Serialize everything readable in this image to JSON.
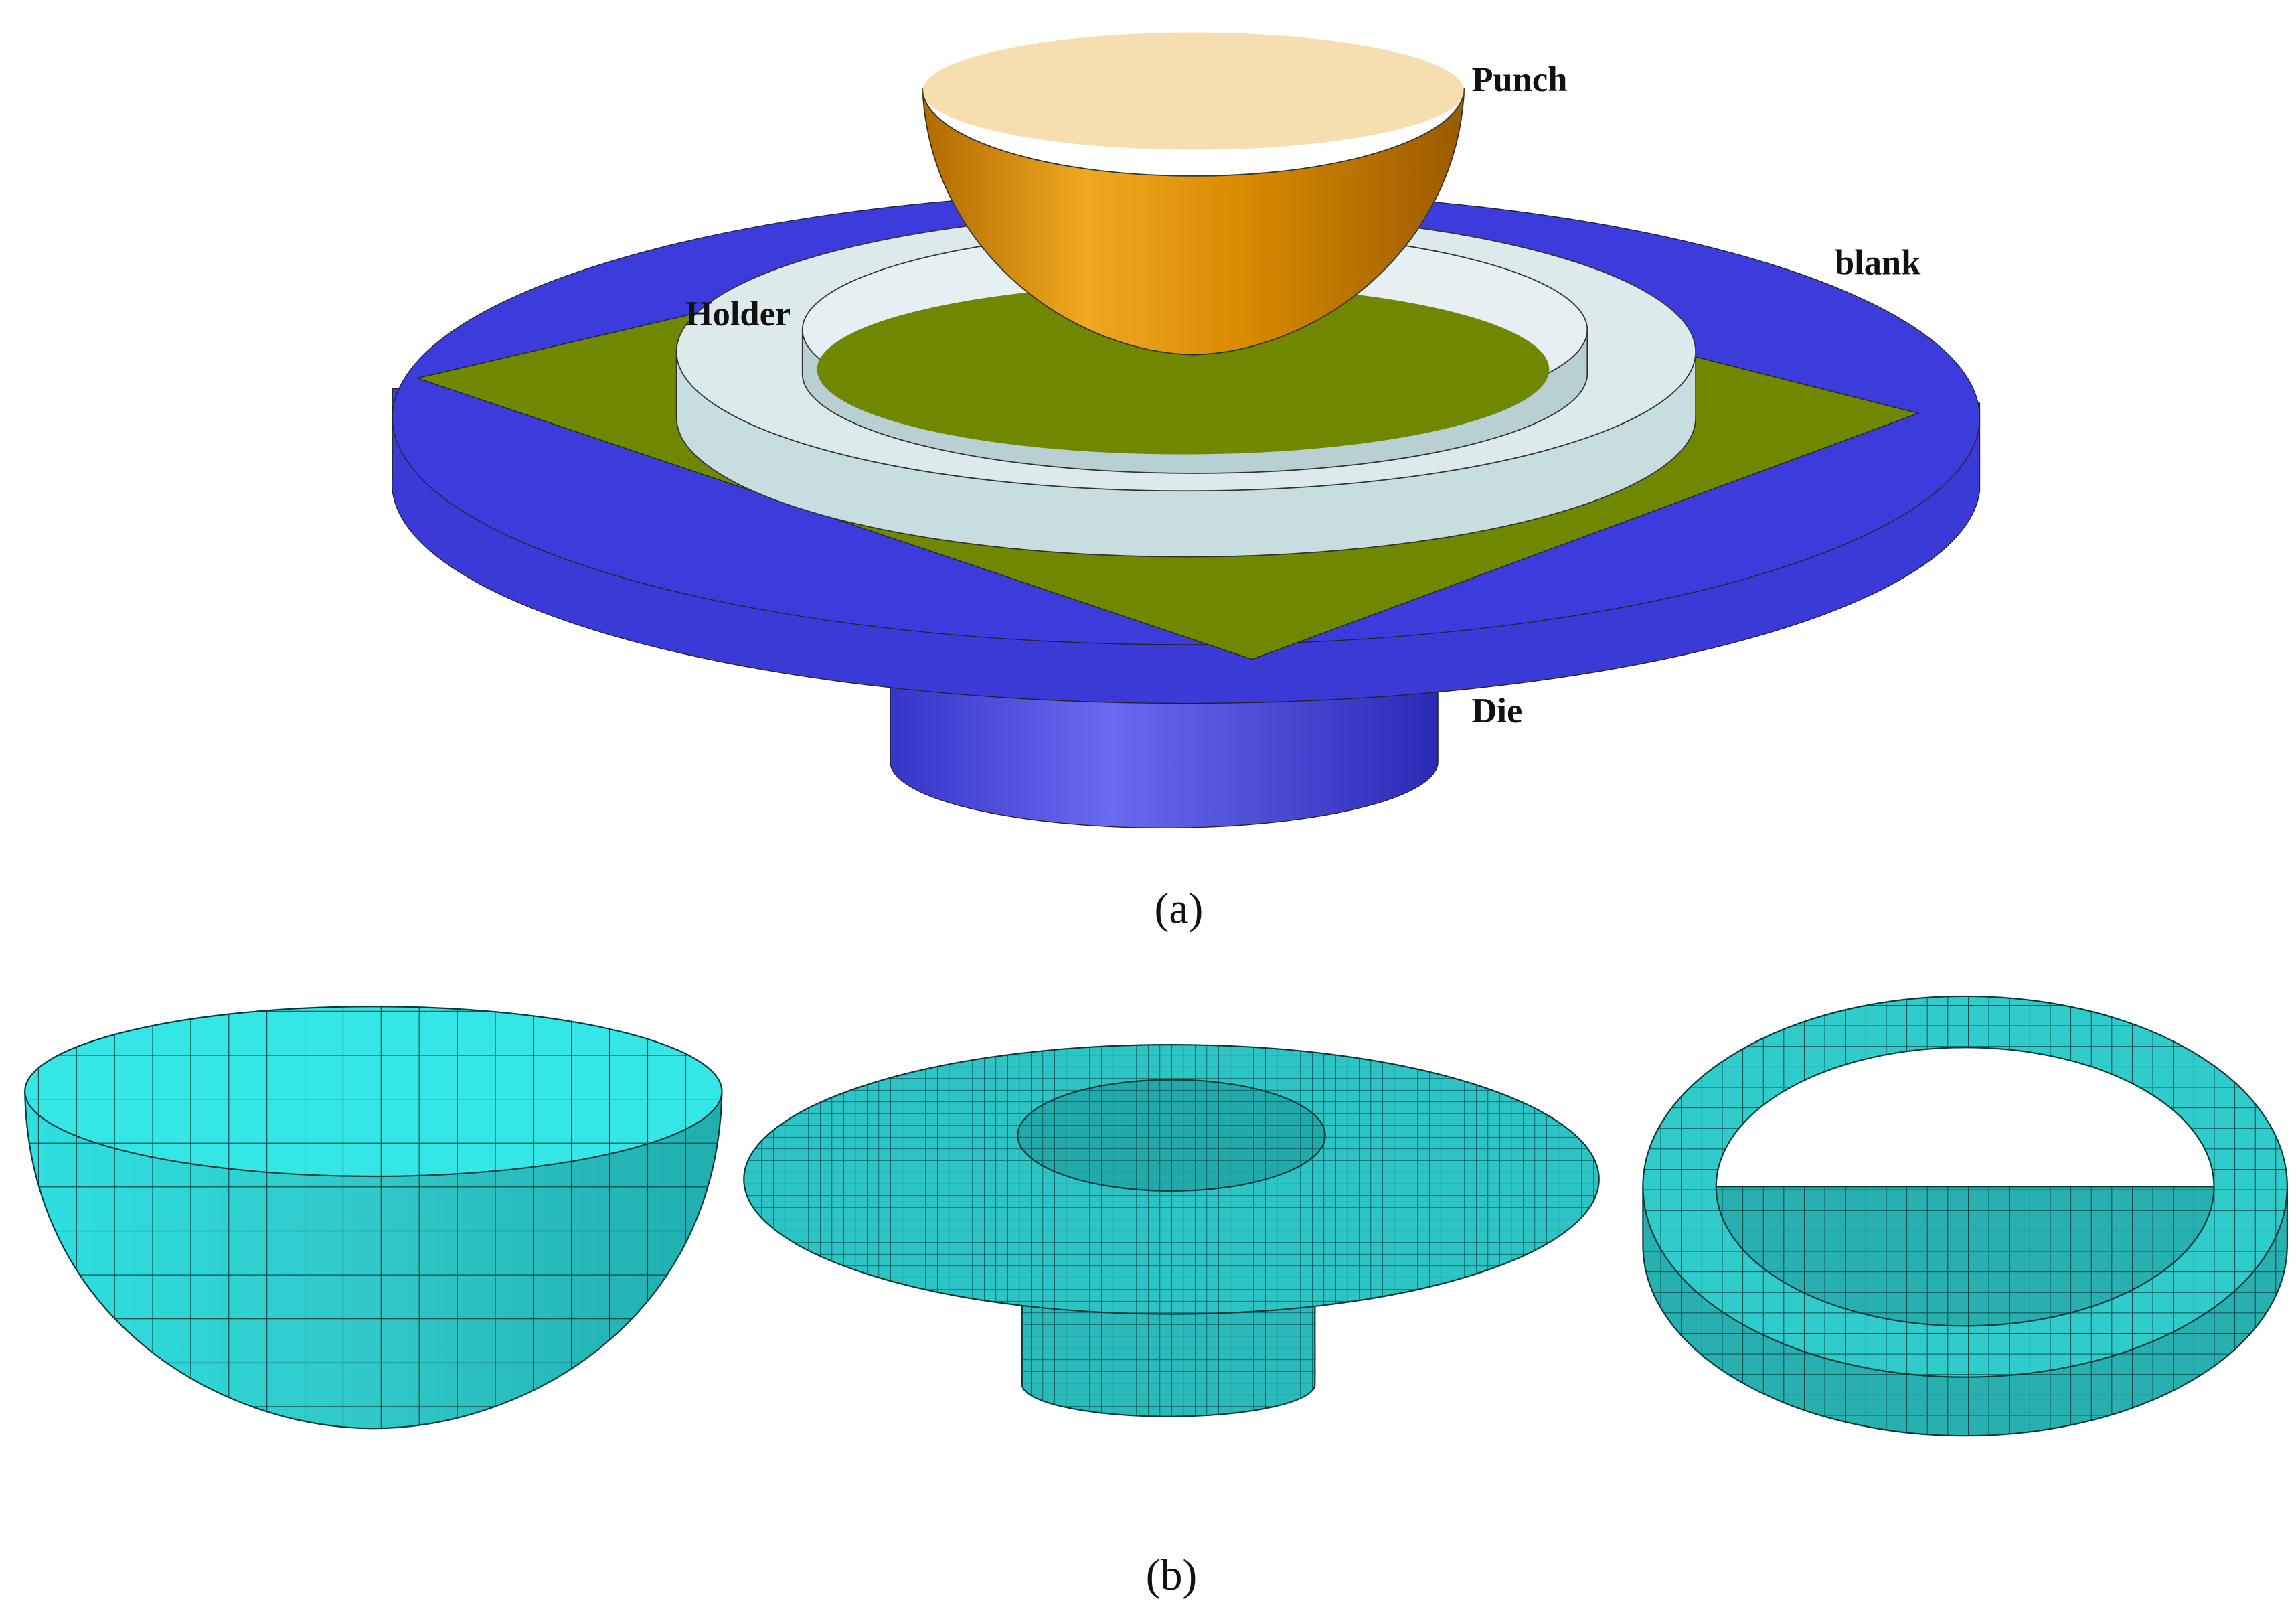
{
  "figure_a": {
    "labels": {
      "punch": "Punch",
      "blank": "blank",
      "holder": "Holder",
      "die": "Die"
    },
    "caption": "(a)"
  },
  "figure_b": {
    "caption": "(b)"
  }
}
